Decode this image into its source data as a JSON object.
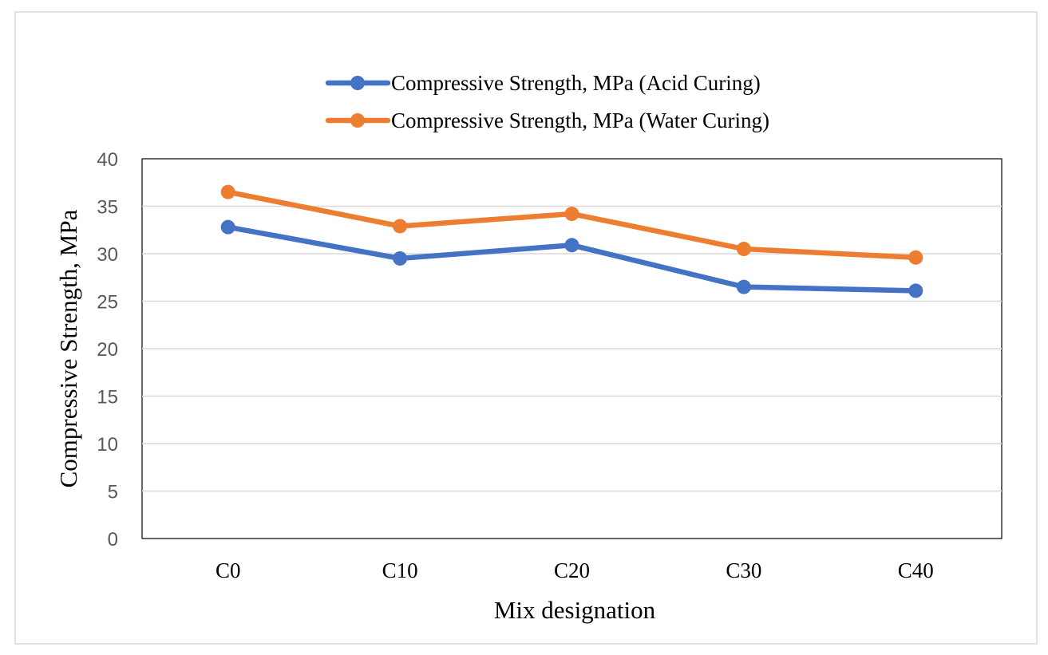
{
  "chart_data": {
    "type": "line",
    "title": "",
    "xlabel": "Mix designation",
    "ylabel": "Compressive Strength, MPa",
    "categories": [
      "C0",
      "C10",
      "C20",
      "C30",
      "C40"
    ],
    "ylim": [
      0,
      40
    ],
    "yticks": [
      0,
      5,
      10,
      15,
      20,
      25,
      30,
      35,
      40
    ],
    "grid": true,
    "legend_position": "top",
    "series": [
      {
        "name": "Compressive Strength, MPa (Acid Curing)",
        "color": "#4472C4",
        "values": [
          32.8,
          29.5,
          30.9,
          26.5,
          26.1
        ]
      },
      {
        "name": "Compressive Strength, MPa (Water Curing)",
        "color": "#ED7D31",
        "values": [
          36.5,
          32.9,
          34.2,
          30.5,
          29.6
        ]
      }
    ]
  }
}
